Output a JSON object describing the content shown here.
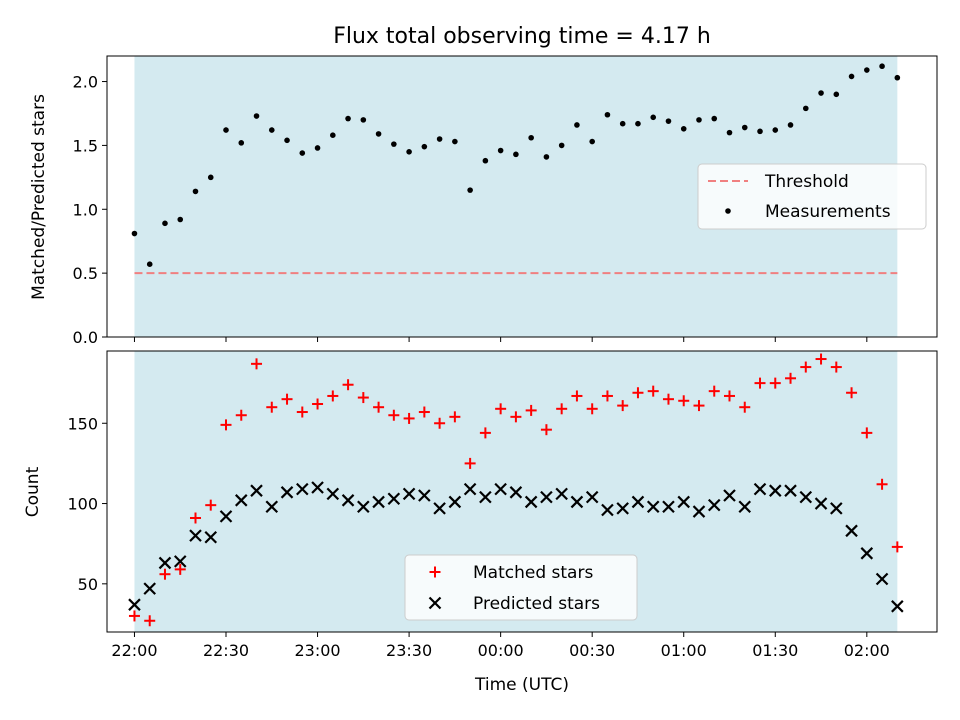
{
  "chart_data": {
    "type": "scatter",
    "title": "Flux total observing time = 4.17 h",
    "xlabel": "Time (UTC)",
    "x_tick_labels": [
      "22:00",
      "22:30",
      "23:00",
      "23:30",
      "00:00",
      "00:30",
      "01:00",
      "01:30",
      "02:00"
    ],
    "colors": {
      "shade": "#d4eaf0",
      "threshold": "#f08080",
      "measurements": "#000000",
      "matched": "#ff0000",
      "predicted": "#000000"
    },
    "time_minutes": [
      0,
      5,
      10,
      15,
      20,
      25,
      30,
      35,
      40,
      45,
      50,
      55,
      60,
      65,
      70,
      75,
      80,
      85,
      90,
      95,
      100,
      105,
      110,
      115,
      120,
      125,
      130,
      135,
      140,
      145,
      150,
      155,
      160,
      165,
      170,
      175,
      180,
      185,
      190,
      195,
      200,
      205,
      210,
      215,
      220,
      225,
      230,
      235,
      240,
      245,
      250
    ],
    "panels": [
      {
        "ylabel": "Matched/Predicted stars",
        "ylim": [
          0,
          2.2
        ],
        "yticks": [
          0.0,
          0.5,
          1.0,
          1.5,
          2.0
        ],
        "ytick_labels": [
          "0.0",
          "0.5",
          "1.0",
          "1.5",
          "2.0"
        ],
        "legend": [
          "Threshold",
          "Measurements"
        ],
        "legend_position": "center-right",
        "threshold": 0.5,
        "measurements": [
          0.81,
          0.57,
          0.89,
          0.92,
          1.14,
          1.25,
          1.62,
          1.52,
          1.73,
          1.62,
          1.54,
          1.44,
          1.48,
          1.58,
          1.71,
          1.7,
          1.59,
          1.51,
          1.45,
          1.49,
          1.55,
          1.53,
          1.15,
          1.38,
          1.46,
          1.43,
          1.56,
          1.41,
          1.5,
          1.66,
          1.53,
          1.74,
          1.67,
          1.67,
          1.72,
          1.69,
          1.63,
          1.7,
          1.71,
          1.6,
          1.64,
          1.61,
          1.62,
          1.66,
          1.79,
          1.91,
          1.9,
          2.04,
          2.09,
          2.12,
          2.03
        ]
      },
      {
        "ylabel": "Count",
        "ylim": [
          20,
          195
        ],
        "yticks": [
          50,
          100,
          150
        ],
        "ytick_labels": [
          "50",
          "100",
          "150"
        ],
        "legend": [
          "Matched stars",
          "Predicted stars"
        ],
        "legend_position": "lower-center",
        "matched": [
          30,
          27,
          56,
          59,
          91,
          99,
          149,
          155,
          187,
          160,
          165,
          157,
          162,
          167,
          174,
          166,
          160,
          155,
          153,
          157,
          150,
          154,
          125,
          144,
          159,
          154,
          158,
          146,
          159,
          167,
          159,
          167,
          161,
          169,
          170,
          165,
          164,
          161,
          170,
          167,
          160,
          175,
          175,
          178,
          185,
          190,
          185,
          169,
          144,
          112,
          73
        ],
        "predicted": [
          37,
          47,
          63,
          64,
          80,
          79,
          92,
          102,
          108,
          98,
          107,
          109,
          110,
          106,
          102,
          98,
          101,
          103,
          106,
          105,
          97,
          101,
          109,
          104,
          109,
          107,
          101,
          104,
          106,
          101,
          104,
          96,
          97,
          101,
          98,
          98,
          101,
          95,
          99,
          105,
          98,
          109,
          108,
          108,
          104,
          100,
          97,
          83,
          69,
          53,
          36
        ]
      }
    ]
  }
}
